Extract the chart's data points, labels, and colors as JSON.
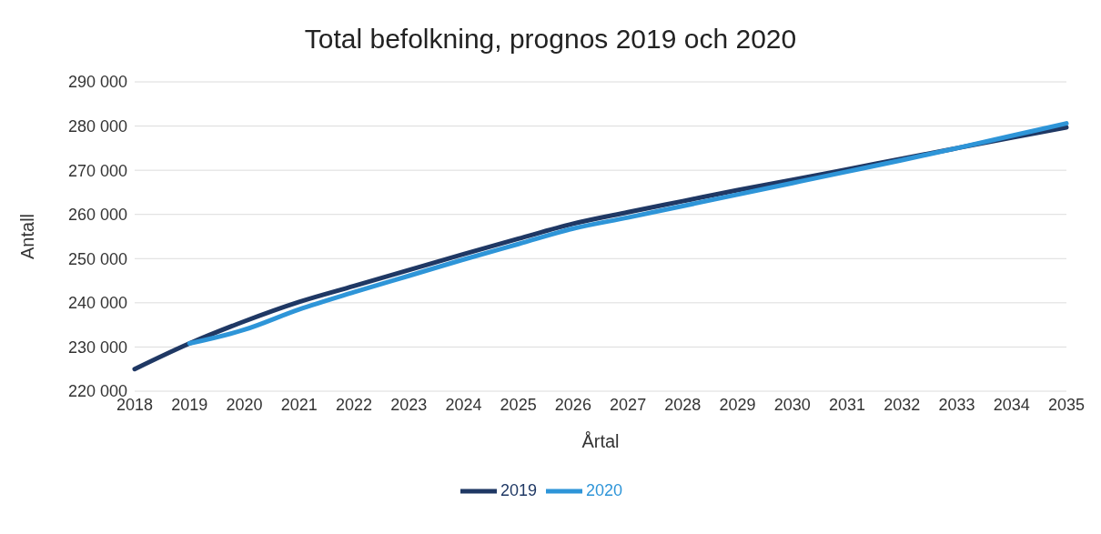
{
  "chart_data": {
    "type": "line",
    "title": "Total befolkning, prognos 2019 och 2020",
    "xlabel": "Årtal",
    "ylabel": "Antall",
    "categories": [
      "2018",
      "2019",
      "2020",
      "2021",
      "2022",
      "2023",
      "2024",
      "2025",
      "2026",
      "2027",
      "2028",
      "2029",
      "2030",
      "2031",
      "2032",
      "2033",
      "2034",
      "2035"
    ],
    "series": [
      {
        "name": "2019",
        "color": "#1f3864",
        "values": [
          225000,
          230800,
          235800,
          240200,
          243800,
          247400,
          251000,
          254500,
          257900,
          260500,
          263000,
          265500,
          267800,
          270200,
          272600,
          275000,
          277400,
          279700
        ]
      },
      {
        "name": "2020",
        "color": "#2e95d8",
        "values": [
          null,
          230800,
          233900,
          238500,
          242400,
          246100,
          249800,
          253300,
          256800,
          259300,
          261900,
          264500,
          267100,
          269700,
          272300,
          275000,
          277800,
          280600
        ]
      }
    ],
    "ylim": [
      220000,
      290000
    ],
    "yticks": [
      {
        "value": 220000,
        "label": "220 000"
      },
      {
        "value": 230000,
        "label": "230 000"
      },
      {
        "value": 240000,
        "label": "240 000"
      },
      {
        "value": 250000,
        "label": "250 000"
      },
      {
        "value": 260000,
        "label": "260 000"
      },
      {
        "value": 270000,
        "label": "270 000"
      },
      {
        "value": 280000,
        "label": "280 000"
      },
      {
        "value": 290000,
        "label": "290 000"
      }
    ],
    "grid": "y",
    "legend": "bottom",
    "marker": "none",
    "line_style": "solid"
  }
}
